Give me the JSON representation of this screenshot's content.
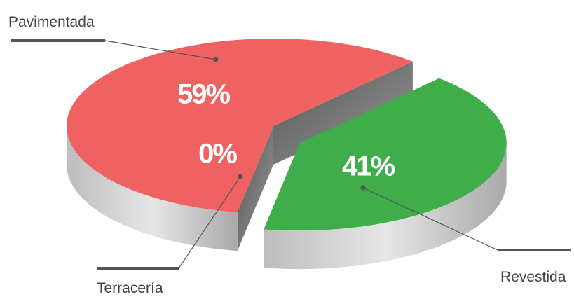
{
  "chart_data": {
    "type": "pie",
    "categories": [
      "Pavimentada",
      "Terracería",
      "Revestida"
    ],
    "values": [
      59,
      0,
      41
    ],
    "value_labels": [
      "59%",
      "0%",
      "41%"
    ],
    "colors": [
      "#f06262",
      "#f06262",
      "#3fad49"
    ]
  }
}
